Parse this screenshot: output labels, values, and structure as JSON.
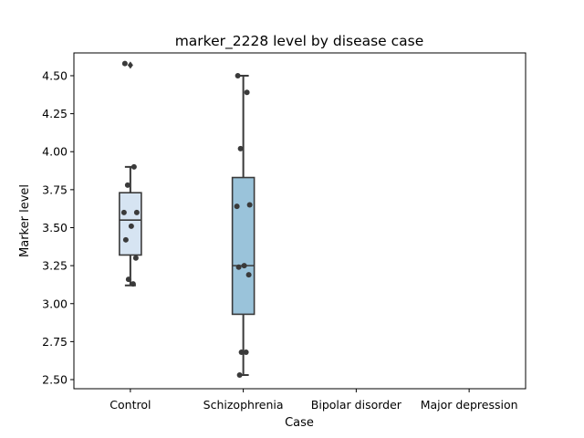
{
  "chart_data": {
    "type": "box",
    "title": "marker_2228 level by disease case",
    "xlabel": "Case",
    "ylabel": "Marker level",
    "categories": [
      "Control",
      "Schizophrenia",
      "Bipolar disorder",
      "Major depression"
    ],
    "ylim": [
      2.44,
      4.65
    ],
    "yticks": [
      2.5,
      2.75,
      3.0,
      3.25,
      3.5,
      3.75,
      4.0,
      4.25,
      4.5
    ],
    "ytick_labels": [
      "2.50",
      "2.75",
      "3.00",
      "3.25",
      "3.50",
      "3.75",
      "4.00",
      "4.25",
      "4.50"
    ],
    "grid": false,
    "boxes": [
      {
        "category": "Control",
        "color": "#d6e4f2",
        "whisker_low": 3.12,
        "q1": 3.32,
        "median": 3.55,
        "q3": 3.73,
        "whisker_high": 3.9,
        "outliers": [
          4.57
        ],
        "points": [
          4.58,
          3.9,
          3.78,
          3.6,
          3.6,
          3.51,
          3.42,
          3.3,
          3.16,
          3.13
        ]
      },
      {
        "category": "Schizophrenia",
        "color": "#9ac3da",
        "whisker_low": 2.53,
        "q1": 2.93,
        "median": 3.25,
        "q3": 3.83,
        "whisker_high": 4.5,
        "outliers": [],
        "points": [
          4.5,
          4.39,
          4.02,
          3.65,
          3.64,
          3.25,
          3.24,
          3.19,
          2.68,
          2.68,
          2.53
        ]
      },
      {
        "category": "Bipolar disorder",
        "color": "#4a90c2",
        "points": []
      },
      {
        "category": "Major depression",
        "color": "#1b5fa3",
        "points": []
      }
    ],
    "point_color": "#3a3a3a",
    "box_edge_color": "#3a3a3a"
  }
}
